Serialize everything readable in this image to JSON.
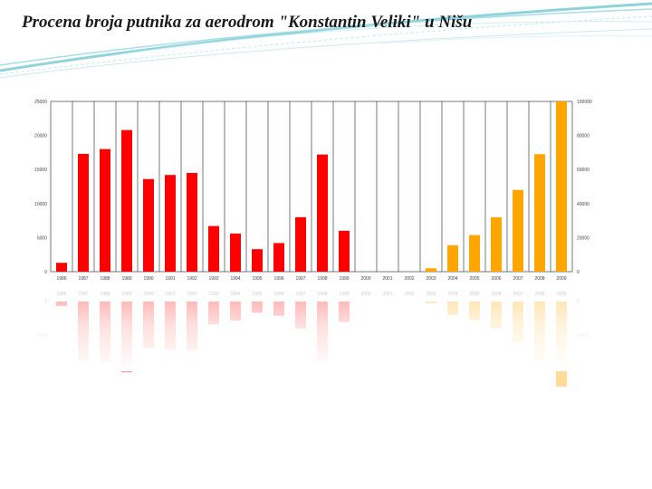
{
  "slide": {
    "title": "Procena broja putnika za aerodrom \"Konstantin Veliki\" u Nišu"
  },
  "colors": {
    "historical_bar": "#ff0000",
    "projected_bar": "#ffa500",
    "grid": "#222222",
    "swoosh": "#8fd3dc"
  },
  "chart_data": {
    "type": "bar",
    "title": "",
    "xlabel": "",
    "ylabel": "",
    "categories": [
      "1986",
      "1987",
      "1988",
      "1989",
      "1990",
      "1991",
      "1992",
      "1993",
      "1994",
      "1995",
      "1996",
      "1997",
      "1998",
      "1999",
      "2000",
      "2001",
      "2002",
      "2003",
      "2004",
      "2005",
      "2006",
      "2007",
      "2008",
      "2009"
    ],
    "series": [
      {
        "axis": "left",
        "color": "#ff0000",
        "values": [
          1300,
          17300,
          18000,
          20800,
          13600,
          14200,
          14500,
          6700,
          5600,
          3300,
          4200,
          8000,
          17200,
          6000,
          null,
          null,
          null,
          null,
          null,
          null,
          null,
          null,
          null,
          null
        ]
      },
      {
        "axis": "right",
        "color": "#ffa500",
        "values": [
          null,
          null,
          null,
          null,
          null,
          null,
          null,
          null,
          null,
          null,
          null,
          null,
          null,
          null,
          null,
          null,
          null,
          2000,
          15500,
          21500,
          32000,
          48000,
          69000,
          100000
        ]
      }
    ],
    "left_axis": {
      "ylim": [
        0,
        25000
      ],
      "ticks": [
        "0",
        "5000",
        "10000",
        "15000",
        "20000",
        "25000"
      ]
    },
    "right_axis": {
      "ylim": [
        0,
        100000
      ],
      "ticks": [
        "0",
        "20000",
        "40000",
        "60000",
        "80000",
        "100000"
      ]
    },
    "grid": true,
    "legend": "none",
    "reflection": true
  }
}
